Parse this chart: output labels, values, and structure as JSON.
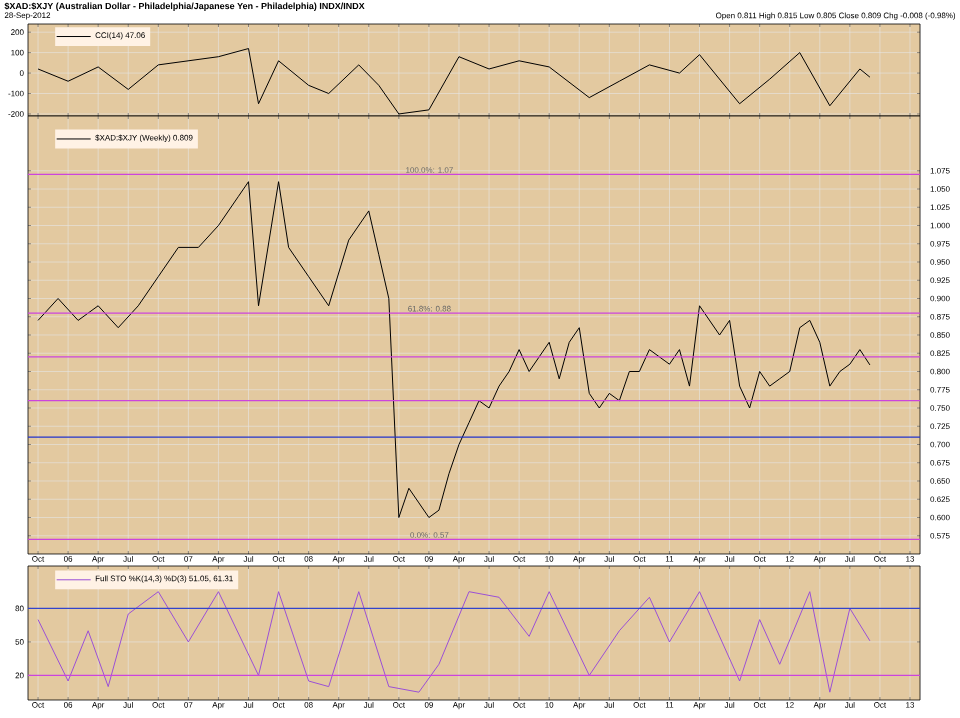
{
  "chart_data": [
    {
      "type": "line",
      "title": "$XAD:$XJY (Australian Dollar - Philadelphia/Japanese Yen - Philadelphia) INDX/INDX",
      "subtitle": "28-Sep-2012",
      "annotations": [
        "Open 0.811 High 0.815 Low 0.805 Close 0.809 Chg -0.008 (-0.98%)"
      ],
      "series": [
        {
          "name": "CCI(14) 47.06",
          "color": "#000000",
          "x": [
            "2005-10",
            "2006-01",
            "2006-04",
            "2006-07",
            "2006-10",
            "2007-01",
            "2007-04",
            "2007-07",
            "2007-08",
            "2007-10",
            "2008-01",
            "2008-03",
            "2008-06",
            "2008-08",
            "2008-10",
            "2009-01",
            "2009-04",
            "2009-07",
            "2009-10",
            "2010-01",
            "2010-05",
            "2010-08",
            "2010-11",
            "2011-02",
            "2011-04",
            "2011-08",
            "2011-11",
            "2012-02",
            "2012-05",
            "2012-08",
            "2012-09"
          ],
          "values": [
            20,
            -40,
            30,
            -80,
            40,
            60,
            80,
            120,
            -150,
            60,
            -60,
            -100,
            40,
            -60,
            -200,
            -180,
            80,
            20,
            60,
            30,
            -120,
            -40,
            40,
            0,
            90,
            -150,
            -30,
            100,
            -160,
            20,
            -20
          ]
        }
      ],
      "xlim": [
        "2005-09",
        "2013-02"
      ],
      "ylim": [
        -210,
        240
      ],
      "yticks": [
        -200,
        -100,
        0,
        100,
        200
      ],
      "grid": true,
      "legend": "top left",
      "tick_labels": "y",
      "xticks": [
        {
          "value": "2005-10",
          "label": null
        },
        {
          "value": "2006-01",
          "label": null
        },
        {
          "value": "2006-04",
          "label": null
        },
        {
          "value": "2006-07",
          "label": null
        },
        {
          "value": "2006-10",
          "label": null
        },
        {
          "value": "2007-01",
          "label": null
        },
        {
          "value": "2007-04",
          "label": null
        },
        {
          "value": "2007-07",
          "label": null
        },
        {
          "value": "2007-10",
          "label": null
        },
        {
          "value": "2008-01",
          "label": null
        },
        {
          "value": "2008-04",
          "label": null
        },
        {
          "value": "2008-07",
          "label": null
        },
        {
          "value": "2008-10",
          "label": null
        },
        {
          "value": "2009-01",
          "label": null
        },
        {
          "value": "2009-04",
          "label": null
        },
        {
          "value": "2009-07",
          "label": null
        },
        {
          "value": "2009-10",
          "label": null
        },
        {
          "value": "2010-01",
          "label": null
        },
        {
          "value": "2010-04",
          "label": null
        },
        {
          "value": "2010-07",
          "label": null
        },
        {
          "value": "2010-10",
          "label": null
        },
        {
          "value": "2011-01",
          "label": null
        },
        {
          "value": "2011-04",
          "label": null
        },
        {
          "value": "2011-07",
          "label": null
        },
        {
          "value": "2011-10",
          "label": null
        },
        {
          "value": "2012-01",
          "label": null
        },
        {
          "value": "2012-04",
          "label": null
        },
        {
          "value": "2012-07",
          "label": null
        },
        {
          "value": "2012-10",
          "label": null
        },
        {
          "value": "2013-01",
          "label": null
        }
      ]
    },
    {
      "type": "line",
      "series": [
        {
          "name": "$XAD:$XJY (Weekly) 0.809",
          "color": "#000000",
          "x": [
            "2005-10",
            "2005-12",
            "2006-02",
            "2006-04",
            "2006-06",
            "2006-08",
            "2006-10",
            "2006-12",
            "2007-02",
            "2007-04",
            "2007-06",
            "2007-07",
            "2007-08",
            "2007-10",
            "2007-11",
            "2008-01",
            "2008-03",
            "2008-05",
            "2008-07",
            "2008-08",
            "2008-09",
            "2008-10",
            "2008-11",
            "2008-12",
            "2009-01",
            "2009-02",
            "2009-03",
            "2009-04",
            "2009-05",
            "2009-06",
            "2009-07",
            "2009-08",
            "2009-09",
            "2009-10",
            "2009-11",
            "2009-12",
            "2010-01",
            "2010-02",
            "2010-03",
            "2010-04",
            "2010-05",
            "2010-06",
            "2010-07",
            "2010-08",
            "2010-09",
            "2010-10",
            "2010-11",
            "2010-12",
            "2011-01",
            "2011-02",
            "2011-03",
            "2011-04",
            "2011-05",
            "2011-06",
            "2011-07",
            "2011-08",
            "2011-09",
            "2011-10",
            "2011-11",
            "2011-12",
            "2012-01",
            "2012-02",
            "2012-03",
            "2012-04",
            "2012-05",
            "2012-06",
            "2012-07",
            "2012-08",
            "2012-09"
          ],
          "values": [
            0.87,
            0.9,
            0.87,
            0.89,
            0.86,
            0.89,
            0.93,
            0.97,
            0.97,
            1.0,
            1.04,
            1.06,
            0.89,
            1.06,
            0.97,
            0.93,
            0.89,
            0.98,
            1.02,
            0.96,
            0.9,
            0.6,
            0.64,
            0.62,
            0.6,
            0.61,
            0.66,
            0.7,
            0.73,
            0.76,
            0.75,
            0.78,
            0.8,
            0.83,
            0.8,
            0.82,
            0.84,
            0.79,
            0.84,
            0.86,
            0.77,
            0.75,
            0.77,
            0.76,
            0.8,
            0.8,
            0.83,
            0.82,
            0.81,
            0.83,
            0.78,
            0.89,
            0.87,
            0.85,
            0.87,
            0.78,
            0.75,
            0.8,
            0.78,
            0.79,
            0.8,
            0.86,
            0.87,
            0.84,
            0.78,
            0.8,
            0.81,
            0.83,
            0.809
          ]
        }
      ],
      "ref_lines": [
        {
          "axis": "y",
          "value": 1.07,
          "label": "100.0%: 1.07",
          "color": "#cc44dd"
        },
        {
          "axis": "y",
          "value": 0.88,
          "label": "61.8%: 0.88",
          "color": "#cc44dd"
        },
        {
          "axis": "y",
          "value": 0.82,
          "color": "#cc44dd"
        },
        {
          "axis": "y",
          "value": 0.76,
          "color": "#cc44dd"
        },
        {
          "axis": "y",
          "value": 0.71,
          "color": "#2233cc"
        },
        {
          "axis": "y",
          "value": 0.57,
          "label": "0.0%: 0.57",
          "color": "#cc44dd"
        }
      ],
      "xlim": [
        "2005-09",
        "2013-02"
      ],
      "ylim": [
        0.55,
        1.15
      ],
      "grid": true,
      "legend": "top left",
      "yticks": [
        {
          "value": 0.575,
          "label": "0.575"
        },
        {
          "value": 0.6,
          "label": "0.600"
        },
        {
          "value": 0.625,
          "label": "0.625"
        },
        {
          "value": 0.65,
          "label": "0.650"
        },
        {
          "value": 0.675,
          "label": "0.675"
        },
        {
          "value": 0.7,
          "label": "0.700"
        },
        {
          "value": 0.725,
          "label": "0.725"
        },
        {
          "value": 0.75,
          "label": "0.750"
        },
        {
          "value": 0.775,
          "label": "0.775"
        },
        {
          "value": 0.8,
          "label": "0.800"
        },
        {
          "value": 0.825,
          "label": "0.825"
        },
        {
          "value": 0.85,
          "label": "0.850"
        },
        {
          "value": 0.875,
          "label": "0.875"
        },
        {
          "value": 0.9,
          "label": "0.900"
        },
        {
          "value": 0.925,
          "label": "0.925"
        },
        {
          "value": 0.95,
          "label": "0.950"
        },
        {
          "value": 0.975,
          "label": "0.975"
        },
        {
          "value": 1.0,
          "label": "1.000"
        },
        {
          "value": 1.025,
          "label": "1.025"
        },
        {
          "value": 1.05,
          "label": "1.050"
        },
        {
          "value": 1.075,
          "label": "1.075"
        }
      ],
      "xticks": [
        {
          "value": "2005-10",
          "label": "Oct"
        },
        {
          "value": "2006-01",
          "label": "06"
        },
        {
          "value": "2006-04",
          "label": "Apr"
        },
        {
          "value": "2006-07",
          "label": "Jul"
        },
        {
          "value": "2006-10",
          "label": "Oct"
        },
        {
          "value": "2007-01",
          "label": "07"
        },
        {
          "value": "2007-04",
          "label": "Apr"
        },
        {
          "value": "2007-07",
          "label": "Jul"
        },
        {
          "value": "2007-10",
          "label": "Oct"
        },
        {
          "value": "2008-01",
          "label": "08"
        },
        {
          "value": "2008-04",
          "label": "Apr"
        },
        {
          "value": "2008-07",
          "label": "Jul"
        },
        {
          "value": "2008-10",
          "label": "Oct"
        },
        {
          "value": "2009-01",
          "label": "09"
        },
        {
          "value": "2009-04",
          "label": "Apr"
        },
        {
          "value": "2009-07",
          "label": "Jul"
        },
        {
          "value": "2009-10",
          "label": "Oct"
        },
        {
          "value": "2010-01",
          "label": "10"
        },
        {
          "value": "2010-04",
          "label": "Apr"
        },
        {
          "value": "2010-07",
          "label": "Jul"
        },
        {
          "value": "2010-10",
          "label": "Oct"
        },
        {
          "value": "2011-01",
          "label": "11"
        },
        {
          "value": "2011-04",
          "label": "Apr"
        },
        {
          "value": "2011-07",
          "label": "Jul"
        },
        {
          "value": "2011-10",
          "label": "Oct"
        },
        {
          "value": "2012-01",
          "label": "12"
        },
        {
          "value": "2012-04",
          "label": "Apr"
        },
        {
          "value": "2012-07",
          "label": "Jul"
        },
        {
          "value": "2012-10",
          "label": "Oct"
        },
        {
          "value": "2013-01",
          "label": "13"
        }
      ]
    },
    {
      "type": "line",
      "series": [
        {
          "name": "Full STO %K(14,3) %D(3) 51.05, 61.31",
          "color": "#9b4fd6",
          "x": [
            "2005-10",
            "2006-01",
            "2006-03",
            "2006-05",
            "2006-07",
            "2006-10",
            "2007-01",
            "2007-04",
            "2007-08",
            "2007-10",
            "2008-01",
            "2008-03",
            "2008-06",
            "2008-09",
            "2008-12",
            "2009-02",
            "2009-05",
            "2009-08",
            "2009-11",
            "2010-01",
            "2010-05",
            "2010-08",
            "2010-11",
            "2011-01",
            "2011-04",
            "2011-08",
            "2011-10",
            "2011-12",
            "2012-03",
            "2012-05",
            "2012-07",
            "2012-09"
          ],
          "values": [
            70,
            15,
            60,
            10,
            75,
            95,
            50,
            95,
            20,
            95,
            15,
            10,
            95,
            10,
            5,
            30,
            95,
            90,
            55,
            95,
            20,
            60,
            90,
            50,
            95,
            15,
            70,
            30,
            95,
            5,
            80,
            51
          ]
        }
      ],
      "ref_lines": [
        {
          "axis": "y",
          "value": 80,
          "color": "#3344cc"
        },
        {
          "axis": "y",
          "value": 20,
          "color": "#cc44dd"
        }
      ],
      "xlim": [
        "2005-09",
        "2013-02"
      ],
      "ylim": [
        -2,
        118
      ],
      "yticks": [
        20,
        50,
        80
      ],
      "grid": true,
      "legend": "top left",
      "xticks": [
        {
          "value": "2005-10",
          "label": "Oct"
        },
        {
          "value": "2006-01",
          "label": "06"
        },
        {
          "value": "2006-04",
          "label": "Apr"
        },
        {
          "value": "2006-07",
          "label": "Jul"
        },
        {
          "value": "2006-10",
          "label": "Oct"
        },
        {
          "value": "2007-01",
          "label": "07"
        },
        {
          "value": "2007-04",
          "label": "Apr"
        },
        {
          "value": "2007-07",
          "label": "Jul"
        },
        {
          "value": "2007-10",
          "label": "Oct"
        },
        {
          "value": "2008-01",
          "label": "08"
        },
        {
          "value": "2008-04",
          "label": "Apr"
        },
        {
          "value": "2008-07",
          "label": "Jul"
        },
        {
          "value": "2008-10",
          "label": "Oct"
        },
        {
          "value": "2009-01",
          "label": "09"
        },
        {
          "value": "2009-04",
          "label": "Apr"
        },
        {
          "value": "2009-07",
          "label": "Jul"
        },
        {
          "value": "2009-10",
          "label": "Oct"
        },
        {
          "value": "2010-01",
          "label": "10"
        },
        {
          "value": "2010-04",
          "label": "Apr"
        },
        {
          "value": "2010-07",
          "label": "Jul"
        },
        {
          "value": "2010-10",
          "label": "Oct"
        },
        {
          "value": "2011-01",
          "label": "11"
        },
        {
          "value": "2011-04",
          "label": "Apr"
        },
        {
          "value": "2011-07",
          "label": "Jul"
        },
        {
          "value": "2011-10",
          "label": "Oct"
        },
        {
          "value": "2012-01",
          "label": "12"
        },
        {
          "value": "2012-04",
          "label": "Apr"
        },
        {
          "value": "2012-07",
          "label": "Jul"
        },
        {
          "value": "2012-10",
          "label": "Oct"
        },
        {
          "value": "2013-01",
          "label": "13"
        }
      ]
    }
  ]
}
